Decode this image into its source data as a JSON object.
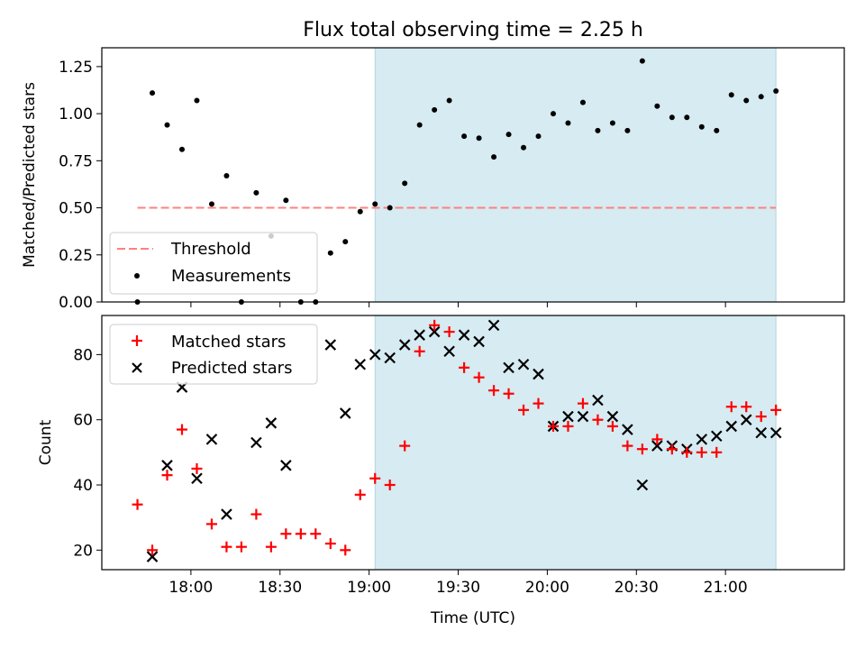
{
  "chart_data": [
    {
      "type": "scatter",
      "title": "Flux total observing time = 2.25 h",
      "xlabel": "",
      "ylabel": "Matched/Predicted stars",
      "xlim": [
        "17:30",
        "21:40"
      ],
      "ylim": [
        0,
        1.35
      ],
      "yticks": [
        0.0,
        0.25,
        0.5,
        0.75,
        1.0,
        1.25
      ],
      "ytick_labels": [
        "0.00",
        "0.25",
        "0.50",
        "0.75",
        "1.00",
        "1.25"
      ],
      "shaded_region": {
        "start": "19:02",
        "end": "21:17",
        "color": "#add8e6"
      },
      "legend": {
        "placement": "lower-left",
        "entries": [
          "Threshold",
          "Measurements"
        ]
      },
      "series": [
        {
          "name": "Threshold",
          "style": "dashed-line",
          "color": "#ff8080",
          "x": [
            "17:42",
            "21:17"
          ],
          "y": [
            0.5,
            0.5
          ]
        },
        {
          "name": "Measurements",
          "style": "dot",
          "color": "#000000",
          "x": [
            "17:42",
            "17:47",
            "17:52",
            "17:57",
            "18:02",
            "18:07",
            "18:12",
            "18:17",
            "18:22",
            "18:27",
            "18:32",
            "18:37",
            "18:42",
            "18:47",
            "18:52",
            "18:57",
            "19:02",
            "19:07",
            "19:12",
            "19:17",
            "19:22",
            "19:27",
            "19:32",
            "19:37",
            "19:42",
            "19:47",
            "19:52",
            "19:57",
            "20:02",
            "20:07",
            "20:12",
            "20:17",
            "20:22",
            "20:27",
            "20:32",
            "20:37",
            "20:42",
            "20:47",
            "20:52",
            "20:57",
            "21:02",
            "21:07",
            "21:12",
            "21:17"
          ],
          "y": [
            0.0,
            1.11,
            0.94,
            0.81,
            1.07,
            0.52,
            0.67,
            0.0,
            0.58,
            0.35,
            0.54,
            0.0,
            0.0,
            0.26,
            0.32,
            0.48,
            0.52,
            0.5,
            0.63,
            0.94,
            1.02,
            1.07,
            0.88,
            0.87,
            0.77,
            0.89,
            0.82,
            0.88,
            1.0,
            0.95,
            1.06,
            0.91,
            0.95,
            0.91,
            1.28,
            1.04,
            0.98,
            0.98,
            0.93,
            0.91,
            1.1,
            1.07,
            1.09,
            1.12
          ]
        }
      ]
    },
    {
      "type": "scatter",
      "title": "",
      "xlabel": "Time (UTC)",
      "ylabel": "Count",
      "xlim": [
        "17:30",
        "21:40"
      ],
      "ylim": [
        14,
        92
      ],
      "xticks": [
        "18:00",
        "18:30",
        "19:00",
        "19:30",
        "20:00",
        "20:30",
        "21:00"
      ],
      "yticks": [
        20,
        40,
        60,
        80
      ],
      "ytick_labels": [
        "20",
        "40",
        "60",
        "80"
      ],
      "shaded_region": {
        "start": "19:02",
        "end": "21:17",
        "color": "#add8e6"
      },
      "legend": {
        "placement": "top-left",
        "entries": [
          "Matched stars",
          "Predicted stars"
        ]
      },
      "series": [
        {
          "name": "Matched stars",
          "marker": "plus",
          "color": "#ff0000",
          "x": [
            "17:42",
            "17:47",
            "17:52",
            "17:57",
            "18:02",
            "18:07",
            "18:12",
            "18:17",
            "18:22",
            "18:27",
            "18:32",
            "18:37",
            "18:42",
            "18:47",
            "18:52",
            "18:57",
            "19:02",
            "19:07",
            "19:12",
            "19:17",
            "19:22",
            "19:27",
            "19:32",
            "19:37",
            "19:42",
            "19:47",
            "19:52",
            "19:57",
            "20:02",
            "20:07",
            "20:12",
            "20:17",
            "20:22",
            "20:27",
            "20:32",
            "20:37",
            "20:42",
            "20:47",
            "20:52",
            "20:57",
            "21:02",
            "21:07",
            "21:12",
            "21:17"
          ],
          "y": [
            34,
            20,
            43,
            57,
            45,
            28,
            21,
            21,
            31,
            21,
            25,
            25,
            25,
            22,
            20,
            37,
            42,
            40,
            52,
            81,
            89,
            87,
            76,
            73,
            69,
            68,
            63,
            65,
            58,
            58,
            65,
            60,
            58,
            52,
            51,
            54,
            51,
            50,
            50,
            50,
            64,
            64,
            61,
            63
          ]
        },
        {
          "name": "Predicted stars",
          "marker": "x",
          "color": "#000000",
          "x": [
            "17:47",
            "17:52",
            "17:57",
            "18:02",
            "18:07",
            "18:12",
            "18:22",
            "18:27",
            "18:32",
            "18:47",
            "18:52",
            "18:57",
            "19:02",
            "19:07",
            "19:12",
            "19:17",
            "19:22",
            "19:27",
            "19:32",
            "19:37",
            "19:42",
            "19:47",
            "19:52",
            "19:57",
            "20:02",
            "20:07",
            "20:12",
            "20:17",
            "20:22",
            "20:27",
            "20:32",
            "20:37",
            "20:42",
            "20:47",
            "20:52",
            "20:57",
            "21:02",
            "21:07",
            "21:12",
            "21:17"
          ],
          "y": [
            18,
            46,
            70,
            42,
            54,
            31,
            53,
            59,
            46,
            83,
            62,
            77,
            80,
            79,
            83,
            86,
            87,
            81,
            86,
            84,
            89,
            76,
            77,
            74,
            58,
            61,
            61,
            66,
            61,
            57,
            40,
            52,
            52,
            51,
            54,
            55,
            58,
            60,
            56,
            56
          ]
        }
      ]
    }
  ]
}
